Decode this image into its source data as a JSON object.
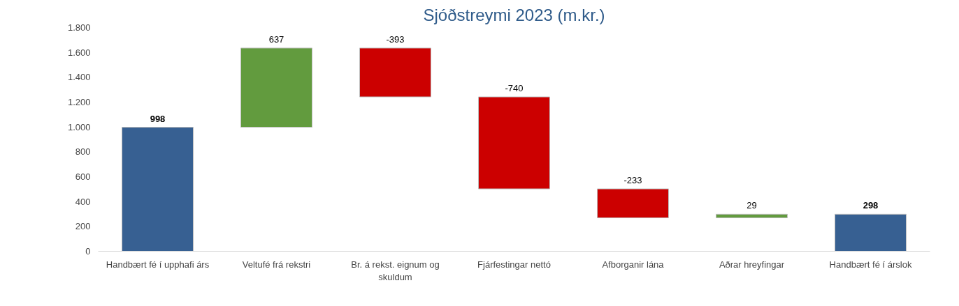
{
  "chart_data": {
    "type": "bar",
    "title": "Sjóðstreymi 2023 (m.kr.)",
    "categories": [
      "Handbært fé í upphafi árs",
      "Veltufé frá rekstri",
      "Br. á rekst. eignum og skuldum",
      "Fjárfestingar nettó",
      "Afborganir lána",
      "Aðrar hreyfingar",
      "Handbært fé í árslok"
    ],
    "values": [
      998,
      637,
      -393,
      -740,
      -233,
      29,
      298
    ],
    "base": [
      0,
      998,
      1635,
      1242,
      502,
      269,
      0
    ],
    "colors": [
      "#376092",
      "#629b3e",
      "#cc0000",
      "#cc0000",
      "#cc0000",
      "#629b3e",
      "#376092"
    ],
    "ylim": [
      0,
      1800
    ],
    "yticks": [
      {
        "value": 0,
        "label": "0"
      },
      {
        "value": 200,
        "label": "200"
      },
      {
        "value": 400,
        "label": "400"
      },
      {
        "value": 600,
        "label": "600"
      },
      {
        "value": 800,
        "label": "800"
      },
      {
        "value": 1000,
        "label": "1.000"
      },
      {
        "value": 1200,
        "label": "1.200"
      },
      {
        "value": 1400,
        "label": "1.400"
      },
      {
        "value": 1600,
        "label": "1.600"
      },
      {
        "value": 1800,
        "label": "1.800"
      }
    ],
    "grid": false,
    "data_labels": true
  }
}
